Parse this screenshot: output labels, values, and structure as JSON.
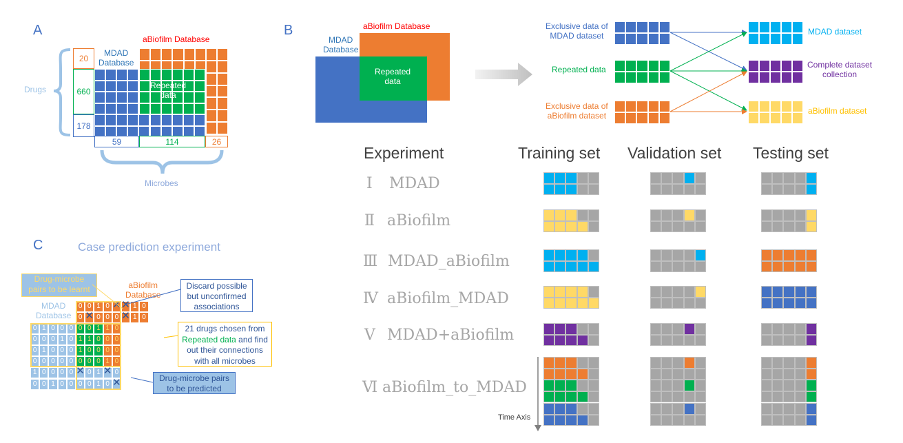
{
  "colors": {
    "blue": "#4472c4",
    "orange": "#ed7d31",
    "green": "#00b050",
    "sky": "#00b0f0",
    "yellow": "#ffd966",
    "purple": "#7030a0",
    "gray": "#a6a6a6",
    "lightblue": "#9dc3e6",
    "red": "#ff0000"
  },
  "panelA": {
    "letter": "A",
    "abiofilm_db": "aBiofilm Database",
    "mdad_db": "MDAD\nDatabase",
    "repeated": "Repeated\ndata",
    "drugs": "Drugs",
    "microbes": "Microbes",
    "row_counts": [
      "20",
      "660",
      "178"
    ],
    "col_counts": [
      "59",
      "114",
      "26"
    ]
  },
  "panelB": {
    "letter": "B",
    "abiofilm_db": "aBiofilm Database",
    "mdad_db": "MDAD\nDatabase",
    "repeated": "Repeated\ndata",
    "sources": [
      "Exclusive data of\nMDAD dataset",
      "Repeated data",
      "Exclusive data of\naBiofilm dataset"
    ],
    "targets": [
      "MDAD dataset",
      "Complete dataset\ncollection",
      "aBiofilm dataset"
    ]
  },
  "experiments": {
    "headers": [
      "Experiment",
      "Training set",
      "Validation set",
      "Testing set"
    ],
    "rows": [
      {
        "num": "Ⅰ",
        "name": "MDAD"
      },
      {
        "num": "Ⅱ",
        "name": "aBiofilm"
      },
      {
        "num": "Ⅲ",
        "name": "MDAD_aBiofilm"
      },
      {
        "num": "Ⅳ",
        "name": "aBiofilm_MDAD"
      },
      {
        "num": "Ⅴ",
        "name": "MDAD+aBiofilm"
      },
      {
        "num": "Ⅵ",
        "name": "aBiofilm_to_MDAD"
      }
    ],
    "time_axis": "Time Axis"
  },
  "panelC": {
    "letter": "C",
    "title": "Case prediction experiment",
    "learnt_label": "Drug-microbe\npairs to be learnt",
    "abiofilm_db": "aBiofilm\nDatabase",
    "mdad_db": "MDAD\nDatabase",
    "discard_note": "Discard possible\nbut unconfirmed\nassociations",
    "chosen_note_a": "21 drugs chosen from",
    "chosen_note_b1": "Repeated data",
    "chosen_note_b2": " and find",
    "chosen_note_c": "out their connections\nwith all microbes",
    "predicted_note": "Drug-microbe pairs\nto be predicted",
    "orange_rows": [
      "00100010",
      "01000010"
    ],
    "blue_rows": [
      "0100000110",
      "0001011000",
      "0100010000",
      "0000000010",
      "1000000100",
      "0010000100"
    ]
  }
}
